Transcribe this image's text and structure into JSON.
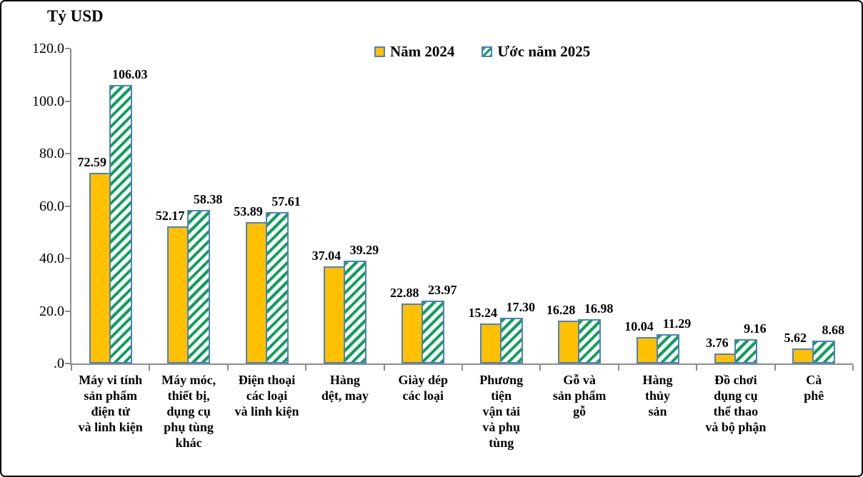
{
  "axis_title": "Tỷ USD",
  "colors": {
    "bar_2024_fill": "#FFC000",
    "bar_border": "#4F81BD",
    "hatch_stripe": "#0FA05A",
    "axis_line": "#8C8C8C",
    "text": "#000000",
    "frame_border": "#000000",
    "background": "#FFFFFF"
  },
  "chart_data": {
    "type": "bar",
    "title": "Tỷ USD",
    "xlabel": "",
    "ylabel": "Tỷ USD",
    "ylim": [
      0,
      120
    ],
    "ytick_step": 20,
    "ytick_labels": [
      ".0",
      "20.0",
      "40.0",
      "60.0",
      "80.0",
      "100.0",
      "120.0"
    ],
    "grid": false,
    "legend_position": "top",
    "categories": [
      "Máy vi tính\nsản phẩm\nđiện tử\nvà linh kiện",
      "Máy móc,\nthiết bị,\ndụng cụ\nphụ tùng\nkhác",
      "Điện thoại\ncác loại\nvà linh kiện",
      "Hàng\ndệt, may",
      "Giày dép\ncác loại",
      "Phương\ntiện\nvận tải\nvà phụ\ntùng",
      "Gỗ và\nsản phẩm\ngỗ",
      "Hàng\nthủy\nsản",
      "Đồ chơi\ndụng cụ\nthể thao\nvà bộ phận",
      "Cà\nphê"
    ],
    "series": [
      {
        "name": "Năm 2024",
        "values": [
          72.59,
          52.17,
          53.89,
          37.04,
          22.88,
          15.24,
          16.28,
          10.04,
          3.76,
          5.62
        ]
      },
      {
        "name": "Ước năm 2025",
        "values": [
          106.03,
          58.38,
          57.61,
          39.29,
          23.97,
          17.3,
          16.98,
          11.29,
          9.16,
          8.68
        ]
      }
    ]
  }
}
